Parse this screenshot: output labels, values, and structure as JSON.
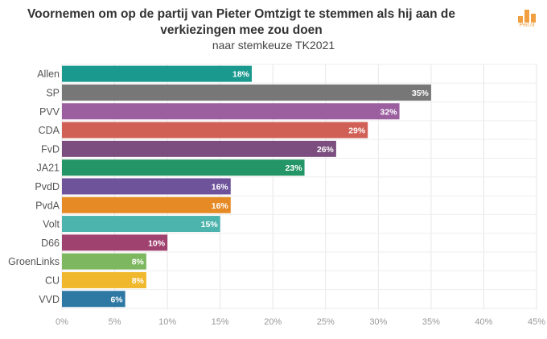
{
  "logo": {
    "text": "Peil.nl",
    "color": "#f0a040"
  },
  "chart_data": {
    "type": "bar",
    "orientation": "horizontal",
    "title": "Voornemen om op de partij van Pieter Omtzigt te stemmen als hij aan de verkiezingen mee zou doen",
    "subtitle": "naar stemkeuze TK2021",
    "categories": [
      "Allen",
      "SP",
      "PVV",
      "CDA",
      "FvD",
      "JA21",
      "PvdD",
      "PvdA",
      "Volt",
      "D66",
      "GroenLinks",
      "CU",
      "VVD"
    ],
    "values": [
      18,
      35,
      32,
      29,
      26,
      23,
      16,
      16,
      15,
      10,
      8,
      8,
      6
    ],
    "value_labels": [
      "18%",
      "35%",
      "32%",
      "29%",
      "26%",
      "23%",
      "16%",
      "16%",
      "15%",
      "10%",
      "8%",
      "8%",
      "6%"
    ],
    "colors": [
      "#1a9a8f",
      "#777777",
      "#9b5fa0",
      "#d05f55",
      "#7b4e7f",
      "#239566",
      "#6e529a",
      "#e68a25",
      "#4db3ad",
      "#a04270",
      "#7db860",
      "#f0b82d",
      "#2e79a3"
    ],
    "xlim": [
      0,
      45
    ],
    "x_ticks": [
      "0%",
      "5%",
      "10%",
      "15%",
      "20%",
      "25%",
      "30%",
      "35%",
      "40%",
      "45%"
    ],
    "grid": true
  }
}
